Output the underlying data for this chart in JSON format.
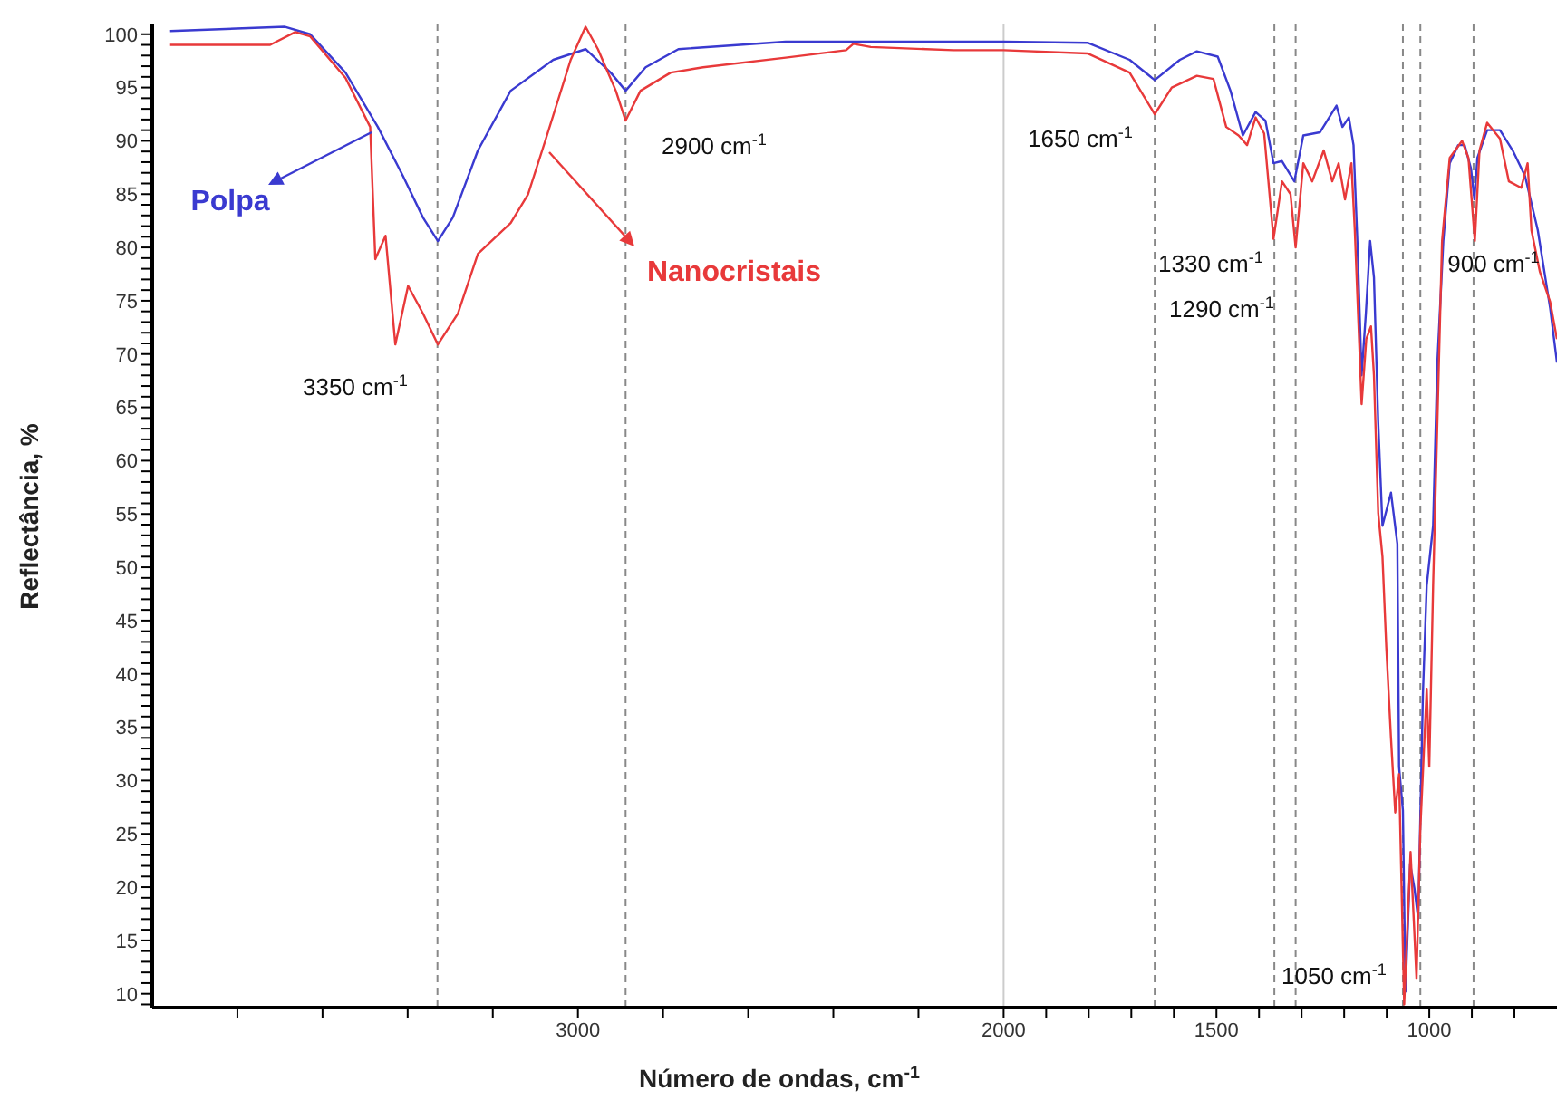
{
  "chart_data": {
    "type": "line",
    "xlabel": "Número de ondas, cm$^{-1}$",
    "ylabel": "Reflectância, %",
    "xlim": [
      4000,
      700
    ],
    "xticks": [
      {
        "value": 3800,
        "label": null
      },
      {
        "value": 3600,
        "label": null
      },
      {
        "value": 3400,
        "label": null
      },
      {
        "value": 3200,
        "label": null
      },
      3000,
      {
        "value": 2800,
        "label": null
      },
      {
        "value": 2600,
        "label": null
      },
      {
        "value": 2400,
        "label": null
      },
      {
        "value": 2200,
        "label": null
      },
      2000,
      {
        "value": 1900,
        "label": null
      },
      {
        "value": 1800,
        "label": null
      },
      {
        "value": 1700,
        "label": null
      },
      {
        "value": 1600,
        "label": null
      },
      1500,
      {
        "value": 1400,
        "label": null
      },
      {
        "value": 1300,
        "label": null
      },
      {
        "value": 1200,
        "label": null
      },
      {
        "value": 1100,
        "label": null
      },
      1000,
      {
        "value": 900,
        "label": null
      },
      {
        "value": 800,
        "label": null
      }
    ],
    "legend": "top left",
    "ylim": [
      8.7,
      101
    ],
    "yticks": [
      {
        "value": 9,
        "label": null
      },
      10,
      {
        "value": 11,
        "label": null
      },
      {
        "value": 12,
        "label": null
      },
      {
        "value": 13,
        "label": null
      },
      {
        "value": 14,
        "label": null
      },
      15,
      {
        "value": 16,
        "label": null
      },
      {
        "value": 17,
        "label": null
      },
      {
        "value": 18,
        "label": null
      },
      {
        "value": 19,
        "label": null
      },
      20,
      {
        "value": 21,
        "label": null
      },
      {
        "value": 22,
        "label": null
      },
      {
        "value": 23,
        "label": null
      },
      {
        "value": 24,
        "label": null
      },
      25,
      {
        "value": 26,
        "label": null
      },
      {
        "value": 27,
        "label": null
      },
      {
        "value": 28,
        "label": null
      },
      {
        "value": 29,
        "label": null
      },
      30,
      {
        "value": 31,
        "label": null
      },
      {
        "value": 32,
        "label": null
      },
      {
        "value": 33,
        "label": null
      },
      {
        "value": 34,
        "label": null
      },
      35,
      {
        "value": 36,
        "label": null
      },
      {
        "value": 37,
        "label": null
      },
      {
        "value": 38,
        "label": null
      },
      {
        "value": 39,
        "label": null
      },
      40,
      {
        "value": 41,
        "label": null
      },
      {
        "value": 42,
        "label": null
      },
      {
        "value": 43,
        "label": null
      },
      {
        "value": 44,
        "label": null
      },
      45,
      {
        "value": 46,
        "label": null
      },
      {
        "value": 47,
        "label": null
      },
      {
        "value": 48,
        "label": null
      },
      {
        "value": 49,
        "label": null
      },
      50,
      {
        "value": 51,
        "label": null
      },
      {
        "value": 52,
        "label": null
      },
      {
        "value": 53,
        "label": null
      },
      {
        "value": 54,
        "label": null
      },
      55,
      {
        "value": 56,
        "label": null
      },
      {
        "value": 57,
        "label": null
      },
      {
        "value": 58,
        "label": null
      },
      {
        "value": 59,
        "label": null
      },
      60,
      {
        "value": 61,
        "label": null
      },
      {
        "value": 62,
        "label": null
      },
      {
        "value": 63,
        "label": null
      },
      {
        "value": 64,
        "label": null
      },
      65,
      {
        "value": 66,
        "label": null
      },
      {
        "value": 67,
        "label": null
      },
      {
        "value": 68,
        "label": null
      },
      {
        "value": 69,
        "label": null
      },
      70,
      {
        "value": 71,
        "label": null
      },
      {
        "value": 72,
        "label": null
      },
      {
        "value": 73,
        "label": null
      },
      {
        "value": 74,
        "label": null
      },
      75,
      {
        "value": 76,
        "label": null
      },
      {
        "value": 77,
        "label": null
      },
      {
        "value": 78,
        "label": null
      },
      {
        "value": 79,
        "label": null
      },
      80,
      {
        "value": 81,
        "label": null
      },
      {
        "value": 82,
        "label": null
      },
      {
        "value": 83,
        "label": null
      },
      {
        "value": 84,
        "label": null
      },
      85,
      {
        "value": 86,
        "label": null
      },
      {
        "value": 87,
        "label": null
      },
      {
        "value": 88,
        "label": null
      },
      {
        "value": 89,
        "label": null
      },
      90,
      {
        "value": 91,
        "label": null
      },
      {
        "value": 92,
        "label": null
      },
      {
        "value": 93,
        "label": null
      },
      {
        "value": 94,
        "label": null
      },
      95,
      {
        "value": 96,
        "label": null
      },
      {
        "value": 97,
        "label": null
      },
      {
        "value": 98,
        "label": null
      },
      {
        "value": 99,
        "label": null
      },
      100
    ],
    "series": [
      {
        "name": "Polpa",
        "color": "#3a3ad0",
        "x": [
          3958,
          3688,
          3629,
          3546,
          3470,
          3411,
          3364,
          3329,
          3294,
          3235,
          3158,
          3058,
          2982,
          2923,
          2888,
          2841,
          2764,
          2512,
          2118,
          2000,
          1803,
          1704,
          1645,
          1586,
          1546,
          1497,
          1467,
          1438,
          1408,
          1385,
          1366,
          1346,
          1317,
          1296,
          1257,
          1218,
          1204,
          1189,
          1178,
          1169,
          1159,
          1149,
          1139,
          1130,
          1120,
          1110,
          1090,
          1075,
          1071,
          1062,
          1056,
          1045,
          1035,
          1026,
          1015,
          1006,
          991,
          981,
          967,
          952,
          932,
          917,
          902,
          894,
          887,
          864,
          834,
          804,
          775,
          745,
          716,
          700
        ],
        "values": [
          100.3,
          100.7,
          100.0,
          96.4,
          91.3,
          86.7,
          82.8,
          80.6,
          82.8,
          89.1,
          94.7,
          97.6,
          98.6,
          96.4,
          94.7,
          96.9,
          98.6,
          99.3,
          99.3,
          99.3,
          99.2,
          97.6,
          95.7,
          97.6,
          98.4,
          97.9,
          94.7,
          90.5,
          92.7,
          91.9,
          87.9,
          88.1,
          86.2,
          90.5,
          90.8,
          93.3,
          91.3,
          92.2,
          89.6,
          80.6,
          68.0,
          73.8,
          80.6,
          77.2,
          63.6,
          53.9,
          57.0,
          52.2,
          31.3,
          27.2,
          10.2,
          22.2,
          19.9,
          17.0,
          38.1,
          48.3,
          53.9,
          69.2,
          80.6,
          87.9,
          89.6,
          89.6,
          87.4,
          84.5,
          88.4,
          91.0,
          91.0,
          89.1,
          86.7,
          81.6,
          74.3,
          69.2
        ]
      },
      {
        "name": "Nanocristais",
        "color": "#e8393a",
        "x": [
          3958,
          3723,
          3664,
          3629,
          3546,
          3488,
          3476,
          3452,
          3429,
          3399,
          3364,
          3329,
          3282,
          3235,
          3158,
          3117,
          3076,
          3017,
          2982,
          2953,
          2911,
          2888,
          2853,
          2782,
          2706,
          2512,
          2370,
          2353,
          2312,
          2118,
          2000,
          1803,
          1704,
          1645,
          1605,
          1546,
          1507,
          1477,
          1448,
          1428,
          1408,
          1388,
          1366,
          1346,
          1326,
          1314,
          1296,
          1275,
          1248,
          1228,
          1213,
          1198,
          1183,
          1175,
          1159,
          1148,
          1137,
          1130,
          1120,
          1110,
          1101,
          1090,
          1080,
          1071,
          1059,
          1044,
          1030,
          1021,
          1006,
          1000,
          991,
          970,
          952,
          923,
          908,
          893,
          882,
          864,
          834,
          813,
          784,
          769,
          760,
          740,
          716,
          700
        ],
        "values": [
          99.0,
          99.0,
          100.2,
          99.8,
          95.9,
          91.3,
          78.9,
          81.1,
          70.9,
          76.4,
          73.8,
          70.9,
          73.8,
          79.4,
          82.3,
          85.0,
          90.1,
          97.6,
          100.7,
          98.6,
          94.7,
          91.9,
          94.7,
          96.4,
          96.9,
          97.8,
          98.5,
          99.1,
          98.8,
          98.5,
          98.5,
          98.2,
          96.4,
          92.5,
          95.0,
          96.1,
          95.8,
          91.3,
          90.5,
          89.6,
          92.2,
          90.7,
          80.8,
          86.2,
          85.0,
          80.0,
          87.9,
          86.2,
          89.1,
          86.2,
          87.9,
          84.5,
          87.9,
          81.6,
          65.3,
          71.4,
          72.6,
          68.0,
          55.1,
          51.0,
          42.5,
          34.0,
          27.0,
          30.6,
          9.0,
          23.3,
          11.4,
          25.5,
          38.6,
          31.3,
          48.3,
          80.6,
          88.4,
          90.0,
          88.4,
          80.6,
          89.1,
          91.7,
          90.2,
          86.2,
          85.6,
          87.9,
          81.6,
          77.7,
          74.9,
          71.4
        ]
      }
    ],
    "ref_lines": [
      {
        "axis": "x",
        "value": 3330,
        "color": "#888888",
        "line_style": "dashed"
      },
      {
        "axis": "x",
        "value": 2888,
        "color": "#888888",
        "line_style": "dashed"
      },
      {
        "axis": "x",
        "value": 2000,
        "color": "#cccccc",
        "line_style": "solid"
      },
      {
        "axis": "x",
        "value": 1645,
        "color": "#888888",
        "line_style": "dashed"
      },
      {
        "axis": "x",
        "value": 1364,
        "color": "#888888",
        "line_style": "dashed"
      },
      {
        "axis": "x",
        "value": 1314,
        "color": "#888888",
        "line_style": "dashed"
      },
      {
        "axis": "x",
        "value": 1062,
        "color": "#888888",
        "line_style": "dashed"
      },
      {
        "axis": "x",
        "value": 1021,
        "color": "#888888",
        "line_style": "dashed"
      },
      {
        "axis": "x",
        "value": 896,
        "color": "#888888",
        "line_style": "dashed"
      }
    ],
    "annotations": [
      "3350 cm$^{-1}$",
      "2900 cm$^{-1}$",
      "1650 cm$^{-1}$",
      "1330 cm$^{-1}$",
      "1290 cm$^{-1}$",
      "900 cm$^{-1}$",
      "1050 cm$^{-1}$"
    ]
  }
}
